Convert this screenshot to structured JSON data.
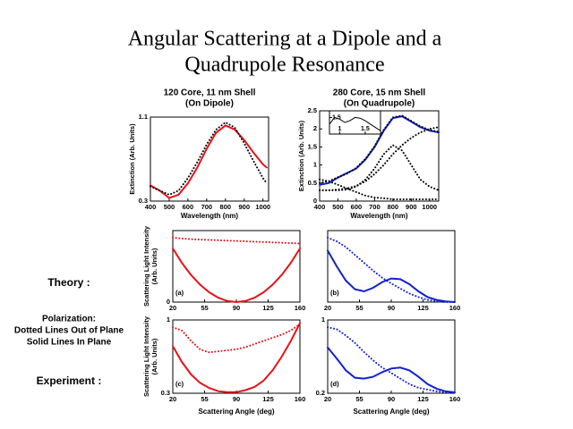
{
  "slide": {
    "title": [
      "Angular Scattering at a Dipole and a",
      "Quadrupole Resonance"
    ],
    "theory": "Theory :",
    "polarization": [
      "Polarization:",
      "Dotted Lines Out of Plane",
      "Solid Lines In Plane"
    ],
    "experiment": "Experiment :"
  },
  "chart_data": [
    {
      "type": "line",
      "title": "120 Core, 11 nm Shell",
      "subtitle": "(On Dipole)",
      "xlabel": "Wavelength (nm)",
      "ylabel": [
        "Extinction (Arb. Units)"
      ],
      "x": [
        400,
        450,
        500,
        550,
        600,
        650,
        700,
        750,
        800,
        850,
        900,
        950,
        1000,
        1020
      ],
      "xlim": [
        400,
        1030
      ],
      "xticks": [
        400,
        500,
        600,
        700,
        800,
        900,
        1000
      ],
      "ylim": [
        0.3,
        1.1
      ],
      "yticks": [
        0.3,
        1.1
      ],
      "series": [
        {
          "color": "#e8121a",
          "style": "solid",
          "values": [
            0.45,
            0.4,
            0.33,
            0.36,
            0.47,
            0.62,
            0.8,
            0.95,
            1.02,
            0.98,
            0.88,
            0.76,
            0.65,
            0.62
          ]
        },
        {
          "color": "#000000",
          "style": "dotted",
          "values": [
            0.44,
            0.4,
            0.36,
            0.4,
            0.52,
            0.67,
            0.84,
            0.98,
            1.05,
            1.0,
            0.85,
            0.68,
            0.52,
            0.47
          ]
        }
      ]
    },
    {
      "type": "line",
      "title": "280 Core, 15 nm Shell",
      "subtitle": "(On Quadrupole)",
      "xlabel": "Wavelength (nm)",
      "ylabel": [
        "Extinction (Arb. Units)"
      ],
      "x": [
        400,
        450,
        500,
        550,
        600,
        650,
        700,
        750,
        800,
        850,
        900,
        950,
        1000,
        1050
      ],
      "xlim": [
        400,
        1050
      ],
      "xticks": [
        400,
        500,
        600,
        700,
        800,
        900,
        1000
      ],
      "ylim": [
        0,
        2.5
      ],
      "yticks": [
        0,
        0.5,
        1,
        1.5,
        2,
        2.5
      ],
      "series": [
        {
          "color": "#1020d0",
          "style": "solid",
          "values": [
            0.45,
            0.5,
            0.65,
            0.78,
            0.9,
            1.15,
            1.5,
            1.95,
            2.3,
            2.35,
            2.2,
            2.05,
            1.95,
            1.9
          ]
        },
        {
          "color": "#000000",
          "style": "dotted",
          "values": [
            0.5,
            0.55,
            0.66,
            0.76,
            0.92,
            1.17,
            1.52,
            1.97,
            2.32,
            2.37,
            2.22,
            2.07,
            1.97,
            1.92
          ]
        },
        {
          "color": "#000000",
          "style": "dotted",
          "values": [
            0.3,
            0.3,
            0.32,
            0.35,
            0.42,
            0.55,
            0.75,
            1.0,
            1.3,
            1.55,
            1.75,
            1.9,
            2.0,
            2.05
          ]
        },
        {
          "color": "#000000",
          "style": "dotted",
          "values": [
            0.3,
            0.3,
            0.3,
            0.32,
            0.4,
            0.6,
            0.9,
            1.3,
            1.55,
            1.4,
            1.0,
            0.6,
            0.4,
            0.3
          ]
        },
        {
          "color": "#000000",
          "style": "dotted",
          "values": [
            0.6,
            0.55,
            0.45,
            0.35,
            0.25,
            0.15,
            0.1,
            0.08,
            0.05,
            0.05,
            0.05,
            0.05,
            0.05,
            0.05
          ]
        }
      ]
    },
    {
      "type": "line",
      "x": [
        0.8,
        0.9,
        1.0,
        1.1,
        1.2,
        1.3,
        1.4,
        1.5,
        1.6,
        1.7,
        1.8
      ],
      "xlim": [
        0.8,
        1.8
      ],
      "xticks": [
        1,
        1.5
      ],
      "ylim": [
        1.0,
        1.7
      ],
      "yticks": [
        1.5
      ],
      "series": [
        {
          "color": "#000000",
          "style": "solid",
          "values": [
            1.3,
            1.5,
            1.45,
            1.35,
            1.4,
            1.5,
            1.48,
            1.4,
            1.3,
            1.2,
            1.1
          ]
        }
      ]
    },
    {
      "type": "line",
      "annotation": "(a)",
      "ylabel": [
        "Scattering Light Intensity",
        "(Arb. Units)"
      ],
      "x": [
        20,
        30,
        40,
        50,
        60,
        70,
        80,
        90,
        100,
        110,
        120,
        130,
        140,
        150,
        160
      ],
      "xlim": [
        20,
        160
      ],
      "xticks": [
        20,
        55,
        90,
        125,
        160
      ],
      "ylim": [
        0,
        1
      ],
      "yticks": [
        0
      ],
      "series": [
        {
          "color": "#e8121a",
          "style": "solid",
          "values": [
            0.75,
            0.55,
            0.38,
            0.245,
            0.138,
            0.061,
            0.015,
            0,
            0.015,
            0.061,
            0.138,
            0.245,
            0.38,
            0.55,
            0.75
          ]
        },
        {
          "color": "#e8121a",
          "style": "dotted",
          "values": [
            0.9,
            0.89,
            0.88,
            0.875,
            0.87,
            0.865,
            0.86,
            0.855,
            0.85,
            0.845,
            0.84,
            0.835,
            0.83,
            0.825,
            0.82
          ]
        }
      ]
    },
    {
      "type": "line",
      "annotation": "(b)",
      "x": [
        20,
        30,
        40,
        50,
        60,
        70,
        80,
        90,
        100,
        110,
        120,
        130,
        140,
        150,
        160
      ],
      "xlim": [
        20,
        160
      ],
      "xticks": [
        20,
        55,
        90,
        125,
        160
      ],
      "ylim": [
        0,
        1
      ],
      "yticks": [],
      "series": [
        {
          "color": "#1020d0",
          "style": "solid",
          "values": [
            0.72,
            0.5,
            0.3,
            0.18,
            0.15,
            0.2,
            0.28,
            0.33,
            0.32,
            0.25,
            0.15,
            0.07,
            0.03,
            0.01,
            0
          ]
        },
        {
          "color": "#1020d0",
          "style": "dotted",
          "values": [
            0.9,
            0.85,
            0.77,
            0.66,
            0.55,
            0.44,
            0.34,
            0.26,
            0.19,
            0.12,
            0.07,
            0.03,
            0.01,
            0,
            0
          ]
        }
      ]
    },
    {
      "type": "line",
      "annotation": "(c)",
      "xlabel": "Scattering Angle (deg)",
      "ylabel": [
        "Scattering Light Intensity",
        "(Arb. Units)"
      ],
      "x": [
        20,
        30,
        40,
        50,
        60,
        70,
        80,
        90,
        100,
        110,
        120,
        130,
        140,
        150,
        160
      ],
      "xlim": [
        20,
        160
      ],
      "xticks": [
        20,
        55,
        90,
        125,
        160
      ],
      "ylim": [
        0.3,
        1
      ],
      "yticks": [
        0.3,
        1
      ],
      "series": [
        {
          "color": "#e8121a",
          "style": "solid",
          "values": [
            0.75,
            0.6,
            0.48,
            0.4,
            0.35,
            0.32,
            0.31,
            0.31,
            0.33,
            0.36,
            0.42,
            0.52,
            0.65,
            0.8,
            0.97
          ]
        },
        {
          "color": "#e8121a",
          "style": "dotted",
          "values": [
            0.93,
            0.9,
            0.8,
            0.72,
            0.69,
            0.7,
            0.71,
            0.72,
            0.74,
            0.77,
            0.8,
            0.83,
            0.86,
            0.9,
            0.96
          ]
        }
      ]
    },
    {
      "type": "line",
      "annotation": "(d)",
      "xlabel": "Scattering Angle (deg)",
      "x": [
        20,
        30,
        40,
        50,
        60,
        70,
        80,
        90,
        100,
        110,
        120,
        130,
        140,
        150,
        160
      ],
      "xlim": [
        20,
        160
      ],
      "xticks": [
        20,
        55,
        90,
        125,
        160
      ],
      "ylim": [
        0.2,
        1
      ],
      "yticks": [
        0.2,
        1
      ],
      "series": [
        {
          "color": "#1020d0",
          "style": "solid",
          "values": [
            0.7,
            0.58,
            0.45,
            0.37,
            0.36,
            0.38,
            0.43,
            0.47,
            0.48,
            0.45,
            0.38,
            0.3,
            0.25,
            0.22,
            0.21
          ]
        },
        {
          "color": "#1020d0",
          "style": "dotted",
          "values": [
            0.92,
            0.9,
            0.83,
            0.75,
            0.65,
            0.56,
            0.48,
            0.42,
            0.36,
            0.3,
            0.26,
            0.24,
            0.22,
            0.21,
            0.2
          ]
        }
      ]
    }
  ]
}
